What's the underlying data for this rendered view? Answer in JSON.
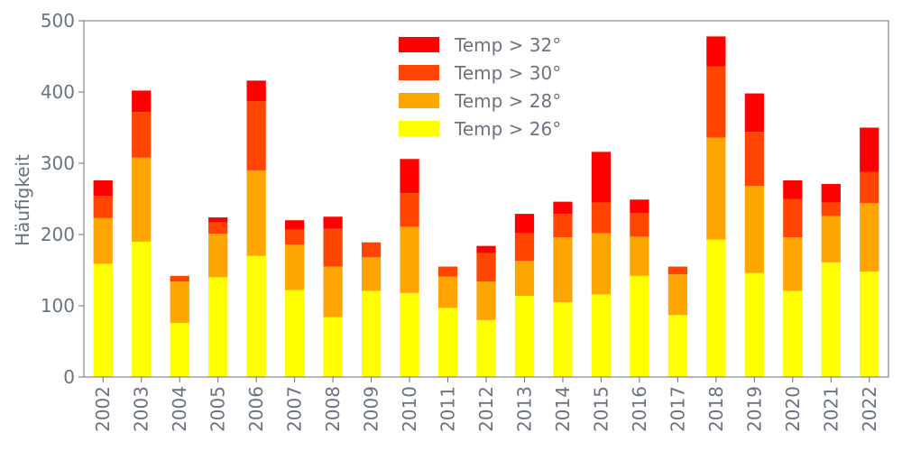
{
  "chart_data": {
    "type": "bar",
    "stacked": true,
    "title": "",
    "xlabel": "",
    "ylabel": "Häufigkeit",
    "ylim": [
      0,
      500
    ],
    "yticks": [
      0,
      100,
      200,
      300,
      400,
      500
    ],
    "grid": false,
    "legend_position": "top-center",
    "categories": [
      "2002",
      "2003",
      "2004",
      "2005",
      "2006",
      "2007",
      "2008",
      "2009",
      "2010",
      "2011",
      "2012",
      "2013",
      "2014",
      "2015",
      "2016",
      "2017",
      "2018",
      "2019",
      "2020",
      "2021",
      "2022"
    ],
    "series": [
      {
        "name": "Temp > 26°",
        "color": "#ffff00",
        "values": [
          159,
          190,
          76,
          140,
          170,
          122,
          84,
          121,
          118,
          97,
          80,
          114,
          105,
          116,
          142,
          87,
          193,
          146,
          121,
          161,
          148
        ]
      },
      {
        "name": "Temp > 28°",
        "color": "#ffa500",
        "values": [
          64,
          118,
          58,
          61,
          120,
          64,
          71,
          47,
          93,
          44,
          54,
          49,
          91,
          86,
          55,
          57,
          143,
          122,
          75,
          65,
          96
        ]
      },
      {
        "name": "Temp > 30°",
        "color": "#ff4500",
        "values": [
          31,
          64,
          8,
          16,
          97,
          21,
          53,
          21,
          47,
          14,
          40,
          39,
          33,
          43,
          33,
          11,
          100,
          76,
          54,
          19,
          44
        ]
      },
      {
        "name": "Temp > 32°",
        "color": "#ff0000",
        "values": [
          22,
          30,
          0,
          7,
          29,
          13,
          17,
          0,
          48,
          0,
          10,
          27,
          17,
          71,
          19,
          0,
          42,
          54,
          26,
          26,
          62
        ]
      }
    ]
  }
}
